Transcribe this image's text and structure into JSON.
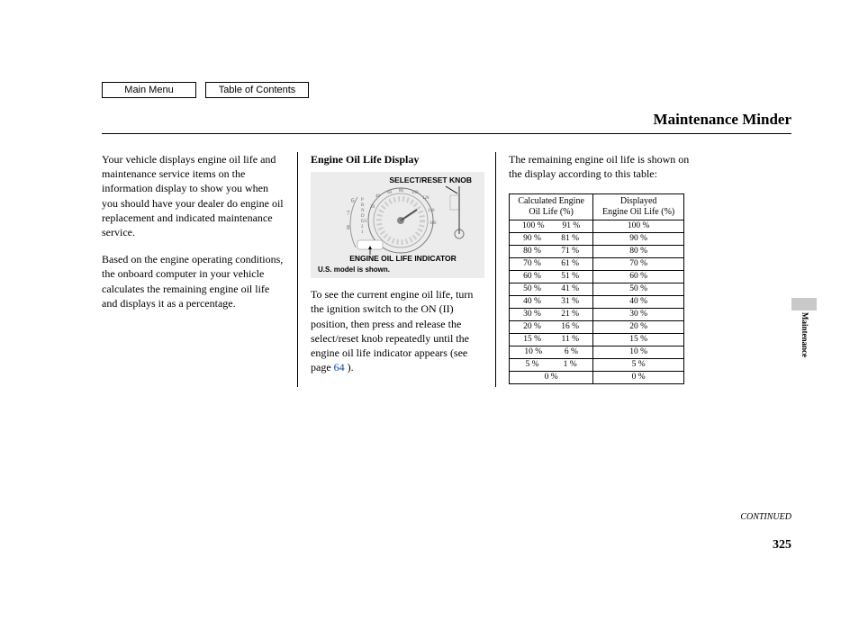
{
  "nav": {
    "main_menu": "Main Menu",
    "toc": "Table of Contents"
  },
  "page_title": "Maintenance Minder",
  "side_tab": "Maintenance",
  "continued": "CONTINUED",
  "page_number": "325",
  "col1": {
    "p1": "Your vehicle displays engine oil life and maintenance service items on the information display to show you when you should have your dealer do engine oil replacement and indicated maintenance service.",
    "p2": "Based on the engine operating conditions, the onboard computer in your vehicle calculates the remaining engine oil life and displays it as a percentage."
  },
  "col2": {
    "heading": "Engine Oil Life Display",
    "gauge": {
      "top_label": "SELECT/RESET KNOB",
      "bottom_label": "ENGINE OIL LIFE INDICATOR",
      "caption": "U.S. model is shown."
    },
    "p1_a": "To see the current engine oil life, turn the ignition switch to the ON (II) position, then press and release the select/reset knob repeatedly until the engine oil life indicator appears (see page ",
    "p1_link": "64",
    "p1_b": " )."
  },
  "col3": {
    "intro": "The remaining engine oil life is shown on the display according to this table:",
    "table": {
      "header_calc_l1": "Calculated Engine",
      "header_calc_l2": "Oil Life (%)",
      "header_disp_l1": "Displayed",
      "header_disp_l2": "Engine Oil Life (%)",
      "rows": [
        {
          "calc_lo": "100 %",
          "calc_hi": "91 %",
          "disp": "100 %"
        },
        {
          "calc_lo": "90 %",
          "calc_hi": "81 %",
          "disp": "90 %"
        },
        {
          "calc_lo": "80 %",
          "calc_hi": "71 %",
          "disp": "80 %"
        },
        {
          "calc_lo": "70 %",
          "calc_hi": "61 %",
          "disp": "70 %"
        },
        {
          "calc_lo": "60 %",
          "calc_hi": "51 %",
          "disp": "60 %"
        },
        {
          "calc_lo": "50 %",
          "calc_hi": "41 %",
          "disp": "50 %"
        },
        {
          "calc_lo": "40 %",
          "calc_hi": "31 %",
          "disp": "40 %"
        },
        {
          "calc_lo": "30 %",
          "calc_hi": "21 %",
          "disp": "30 %"
        },
        {
          "calc_lo": "20 %",
          "calc_hi": "16 %",
          "disp": "20 %"
        },
        {
          "calc_lo": "15 %",
          "calc_hi": "11 %",
          "disp": "15 %"
        },
        {
          "calc_lo": "10 %",
          "calc_hi": "6 %",
          "disp": "10 %"
        },
        {
          "calc_lo": "5 %",
          "calc_hi": "1 %",
          "disp": "5 %"
        },
        {
          "calc_lo": "0 %",
          "calc_hi": "",
          "disp": "0 %"
        }
      ]
    }
  },
  "style": {
    "link_color": "#0047c2",
    "gauge_bg": "#ececec",
    "side_tab_bg": "#c9c9c9",
    "table_font_size": 10
  }
}
